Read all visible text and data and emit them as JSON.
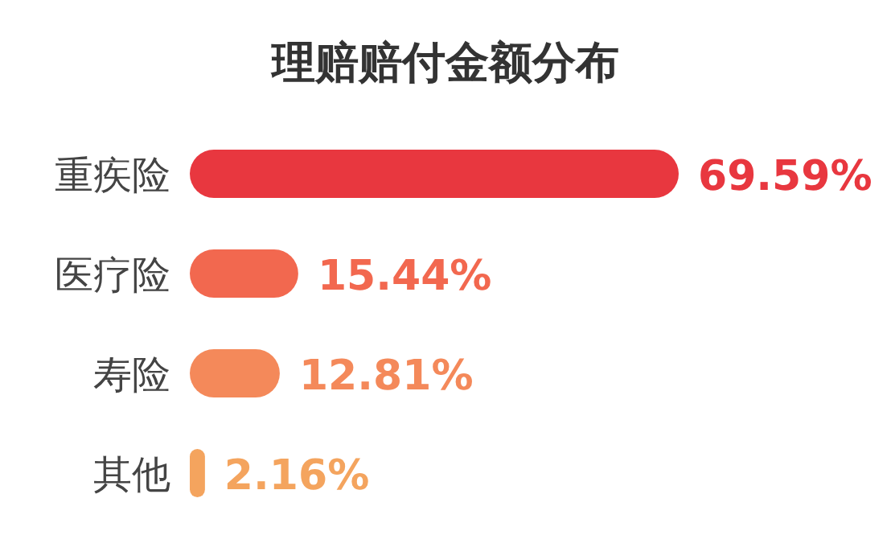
{
  "chart_data": {
    "type": "bar",
    "orientation": "horizontal",
    "title": "理赔赔付金额分布",
    "categories": [
      "重疾险",
      "医疗险",
      "寿险",
      "其他"
    ],
    "values": [
      69.59,
      15.44,
      12.81,
      2.16
    ],
    "colors": [
      "#e8373f",
      "#f2684f",
      "#f4895a",
      "#f4a45e"
    ],
    "value_labels": [
      "69.59%",
      "15.44%",
      "12.81%",
      "2.16%"
    ]
  }
}
